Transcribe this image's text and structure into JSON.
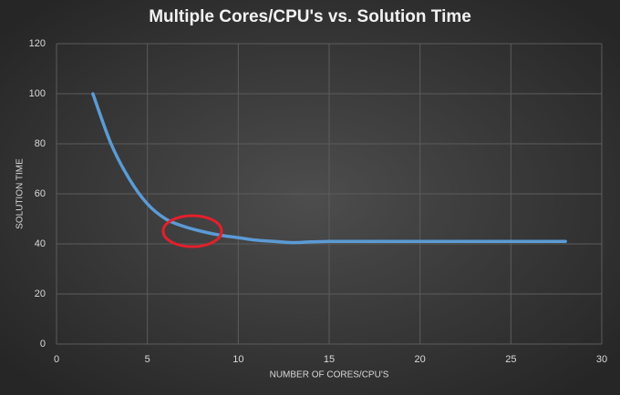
{
  "chart_data": {
    "type": "line",
    "title": "Multiple Cores/CPU's vs. Solution Time",
    "x_label": "NUMBER OF CORES/CPU'S",
    "y_label": "SOLUTION TIME",
    "x": [
      2,
      3,
      4,
      5,
      6,
      7,
      8,
      9,
      10,
      11,
      12,
      13,
      14,
      15,
      16,
      17,
      18,
      19,
      20,
      21,
      22,
      23,
      24,
      25,
      26,
      27,
      28
    ],
    "values": [
      100,
      80,
      66,
      56,
      50,
      47,
      45,
      43.5,
      42.5,
      41.5,
      41,
      40.5,
      40.8,
      41,
      41,
      41,
      41,
      41,
      41,
      41,
      41,
      41,
      41,
      41,
      41,
      41,
      41
    ],
    "color": "#5b9bd5",
    "xlim": [
      0,
      30
    ],
    "xticks": [
      0,
      5,
      10,
      15,
      20,
      25,
      30
    ],
    "ylim": [
      0,
      120
    ],
    "yticks": [
      0,
      20,
      40,
      60,
      80,
      100,
      120
    ],
    "grid": true
  }
}
